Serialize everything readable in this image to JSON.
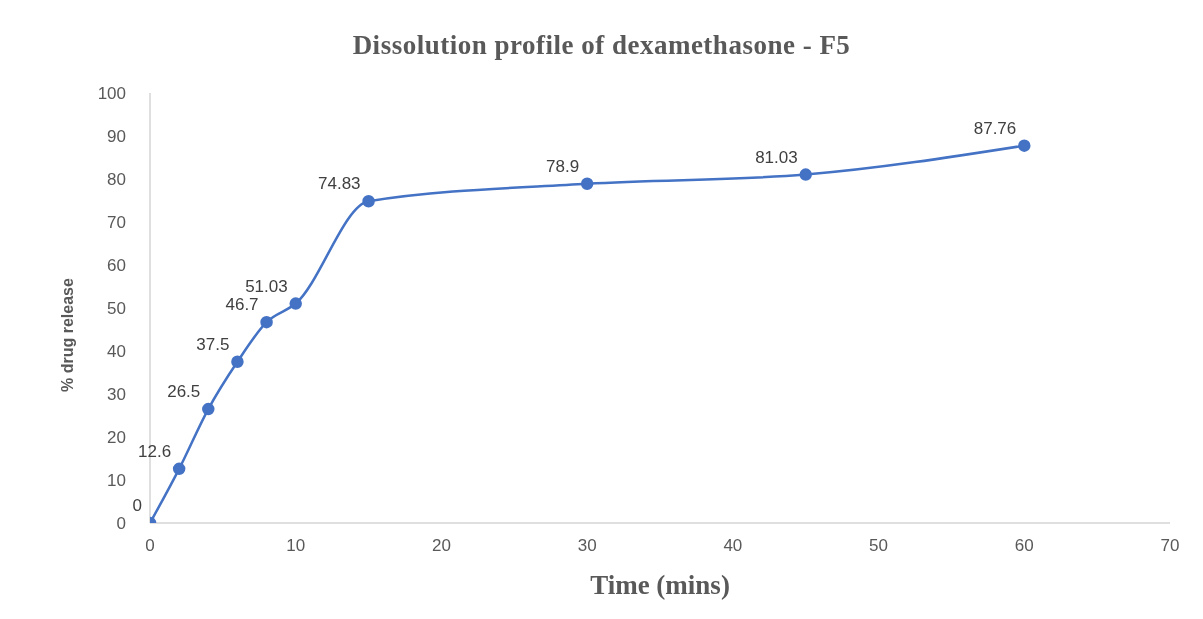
{
  "chart_data": {
    "type": "line",
    "title": "Dissolution profile of dexamethasone - F5",
    "xlabel": "Time (mins)",
    "ylabel": "% drug release",
    "x": [
      0,
      2,
      4,
      6,
      8,
      10,
      15,
      30,
      45,
      60
    ],
    "series": [
      {
        "color": "#4472c4",
        "values": [
          0,
          12.6,
          26.5,
          37.5,
          46.7,
          51.03,
          74.83,
          78.9,
          81.03,
          87.76
        ]
      }
    ],
    "xlim": [
      0,
      70
    ],
    "xticks": [
      0,
      10,
      20,
      30,
      40,
      50,
      60,
      70
    ],
    "ylim": [
      0,
      100
    ],
    "yticks": [
      0,
      10,
      20,
      30,
      40,
      50,
      60,
      70,
      80,
      90,
      100
    ],
    "grid": false,
    "marker": "circle",
    "line_style": "solid",
    "data_labels": true
  }
}
